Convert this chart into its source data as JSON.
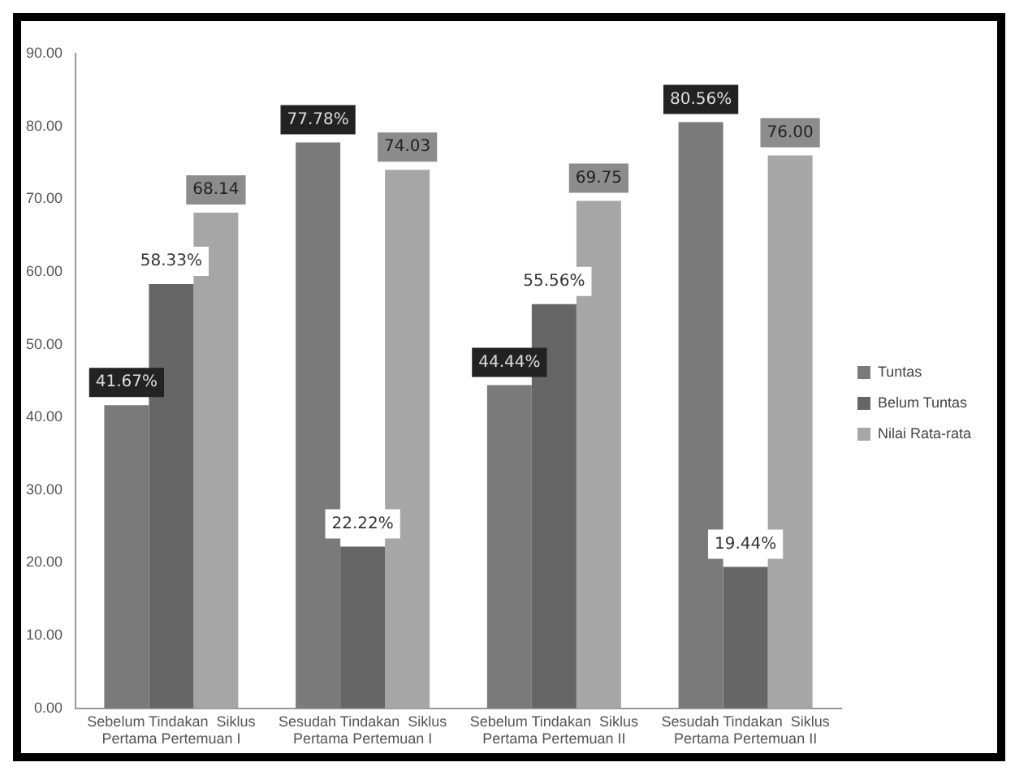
{
  "chart_data": {
    "type": "bar",
    "categories": [
      "Sebelum Tindakan  Siklus Pertama Pertemuan I",
      "Sesudah Tindakan  Siklus Pertama Pertemuan I",
      "Sebelum Tindakan  Siklus Pertama Pertemuan II",
      "Sesudah Tindakan  Siklus Pertama Pertemuan II"
    ],
    "series": [
      {
        "name": "Tuntas",
        "color": "#7a7a7a",
        "values": [
          41.67,
          77.78,
          44.44,
          80.56
        ],
        "value_labels": [
          "41.67%",
          "77.78%",
          "44.44%",
          "80.56%"
        ]
      },
      {
        "name": "Belum Tuntas",
        "color": "#666666",
        "values": [
          58.33,
          22.22,
          55.56,
          19.44
        ],
        "value_labels": [
          "58.33%",
          "22.22%",
          "55.56%",
          "19.44%"
        ]
      },
      {
        "name": "Nilai Rata-rata",
        "color": "#a6a6a6",
        "values": [
          68.14,
          74.03,
          69.75,
          76.0
        ],
        "value_labels": [
          "68.14",
          "74.03",
          "69.75",
          "76.00"
        ]
      }
    ],
    "ylim": [
      0,
      90
    ],
    "yticks": [
      {
        "value": 0,
        "label": "0.00"
      },
      {
        "value": 10,
        "label": "10.00"
      },
      {
        "value": 20,
        "label": "20.00"
      },
      {
        "value": 30,
        "label": "30.00"
      },
      {
        "value": 40,
        "label": "40.00"
      },
      {
        "value": 50,
        "label": "50.00"
      },
      {
        "value": 60,
        "label": "60.00"
      },
      {
        "value": 70,
        "label": "70.00"
      },
      {
        "value": 80,
        "label": "80.00"
      },
      {
        "value": 90,
        "label": "90.00"
      }
    ],
    "grid": false,
    "legend": "right"
  }
}
